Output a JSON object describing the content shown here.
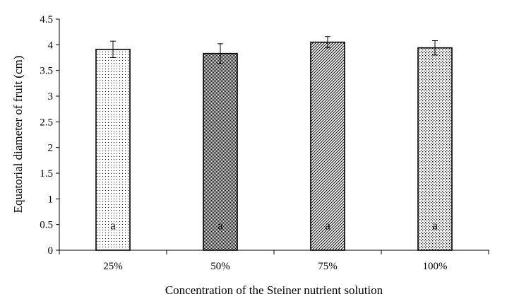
{
  "chart_data": {
    "type": "bar",
    "categories": [
      "25%",
      "50%",
      "75%",
      "100%"
    ],
    "values": [
      3.91,
      3.83,
      4.05,
      3.94
    ],
    "errors": [
      0.16,
      0.19,
      0.11,
      0.14
    ],
    "letters": [
      "a",
      "a",
      "a",
      "a"
    ],
    "patterns": [
      "dots-sparse",
      "dots-dense",
      "diagonal-hatch",
      "dots-grid"
    ],
    "xlabel": "Concentration of the Steiner nutrient solution",
    "ylabel": "Equatorial diameter of fruit (cm)",
    "ylim": [
      0,
      4.5
    ],
    "yticks": [
      "0",
      "0.5",
      "1",
      "1.5",
      "2",
      "2.5",
      "3",
      "3.5",
      "4",
      "4.5"
    ],
    "grid": false,
    "colors": {
      "bar_edge": "#000000",
      "fill_bg": "#ffffff",
      "pattern": "#000000"
    }
  }
}
